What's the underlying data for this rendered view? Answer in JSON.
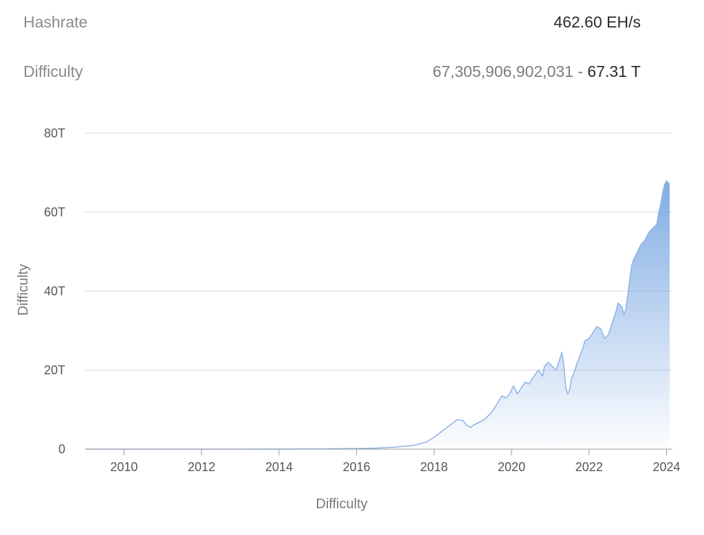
{
  "stats": {
    "hashrate_label": "Hashrate",
    "hashrate_value": "462.60 EH/s",
    "difficulty_label": "Difficulty",
    "difficulty_raw": "67,305,906,902,031",
    "difficulty_separator": " - ",
    "difficulty_short": "67.31 T"
  },
  "colors": {
    "line": "#8fb5e6",
    "fill_top": "#7aa8e2",
    "grid": "#d6d6d6",
    "axis": "#9a9a9a"
  },
  "chart_data": {
    "type": "area",
    "title": "",
    "xlabel": "Difficulty",
    "ylabel": "Difficulty",
    "xlim": [
      2009.0,
      2024.15
    ],
    "ylim": [
      0,
      80
    ],
    "y_unit": "T",
    "x_ticks": [
      "2010",
      "2012",
      "2014",
      "2016",
      "2018",
      "2020",
      "2022",
      "2024"
    ],
    "y_ticks": [
      "0",
      "20T",
      "40T",
      "60T",
      "80T"
    ],
    "grid": true,
    "legend": "none",
    "series": [
      {
        "x": [
          2009.0,
          2010.0,
          2011.0,
          2012.0,
          2013.0,
          2014.0,
          2015.0,
          2016.0,
          2016.5,
          2017.0,
          2017.5,
          2017.8,
          2018.0,
          2018.2,
          2018.4,
          2018.6,
          2018.75,
          2018.85,
          2018.95,
          2019.0,
          2019.1,
          2019.3,
          2019.5,
          2019.6,
          2019.75,
          2019.85,
          2019.95,
          2020.05,
          2020.15,
          2020.25,
          2020.35,
          2020.45,
          2020.55,
          2020.65,
          2020.7,
          2020.8,
          2020.85,
          2020.95,
          2021.05,
          2021.15,
          2021.25,
          2021.3,
          2021.35,
          2021.4,
          2021.45,
          2021.5,
          2021.55,
          2021.6,
          2021.7,
          2021.8,
          2021.9,
          2022.0,
          2022.1,
          2022.2,
          2022.3,
          2022.4,
          2022.5,
          2022.6,
          2022.7,
          2022.75,
          2022.85,
          2022.9,
          2022.95,
          2023.0,
          2023.05,
          2023.1,
          2023.15,
          2023.25,
          2023.35,
          2023.45,
          2023.55,
          2023.65,
          2023.75,
          2023.8,
          2023.85,
          2023.9,
          2023.95,
          2024.0,
          2024.05,
          2024.08
        ],
        "y": [
          0.0,
          0.0,
          0.0,
          0.0,
          0.0,
          0.01,
          0.05,
          0.15,
          0.25,
          0.5,
          1.0,
          1.8,
          3.0,
          4.5,
          6.0,
          7.5,
          7.2,
          6.0,
          5.5,
          6.0,
          6.5,
          7.5,
          9.5,
          11.0,
          13.5,
          13.0,
          14.0,
          16.0,
          14.0,
          15.5,
          17.0,
          16.5,
          18.0,
          19.5,
          20.0,
          18.5,
          21.0,
          22.0,
          21.0,
          20.0,
          23.0,
          24.5,
          21.0,
          15.5,
          14.0,
          15.0,
          18.0,
          19.0,
          22.0,
          24.5,
          27.5,
          28.0,
          29.5,
          31.0,
          30.5,
          28.0,
          29.0,
          32.0,
          35.0,
          37.0,
          36.0,
          34.0,
          35.5,
          39.0,
          43.0,
          46.5,
          48.0,
          50.0,
          52.0,
          53.0,
          55.0,
          56.0,
          57.0,
          60.0,
          62.0,
          65.0,
          67.0,
          68.0,
          67.3,
          67.3
        ]
      }
    ]
  }
}
